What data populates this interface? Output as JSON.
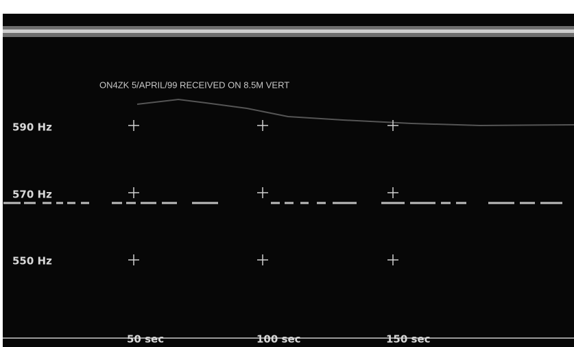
{
  "caption": "ON4ZK   5/APRIL/99  RECEIVED ON 8.5M VERT",
  "frequency_labels": [
    "590 Hz",
    "570 Hz",
    "550 Hz"
  ],
  "time_labels": [
    "50 sec",
    "100 sec",
    "150 sec"
  ]
}
